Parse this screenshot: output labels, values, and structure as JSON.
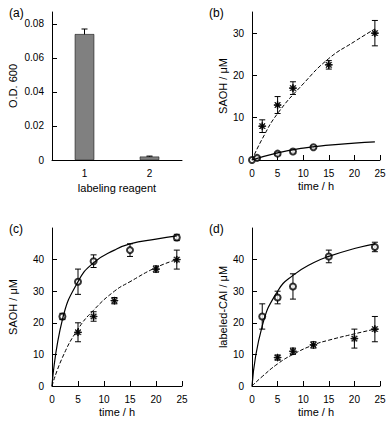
{
  "chart_data": [
    {
      "type": "bar",
      "title": "(a)",
      "xlabel": "labeling reagent",
      "ylabel": "O.D. 600",
      "categories": [
        "1",
        "2"
      ],
      "values": [
        0.074,
        0.002
      ],
      "errors": [
        0.003,
        0.0003
      ],
      "color": "#808080",
      "ylim": [
        0,
        0.087
      ],
      "yticks": [
        0,
        0.02,
        0.04,
        0.06,
        0.08
      ]
    },
    {
      "type": "scatter",
      "title": "(b)",
      "xlabel": "time / h",
      "ylabel": "SAOH / μM",
      "xlim": [
        0,
        25
      ],
      "xticks": [
        0,
        5,
        10,
        15,
        20,
        25
      ],
      "ylim": [
        0,
        35
      ],
      "yticks": [
        0,
        10,
        20,
        30
      ],
      "series": [
        {
          "type": "scatter",
          "marker": "asterisk",
          "color": "#000000",
          "x": [
            2,
            5,
            8,
            15,
            24
          ],
          "values": [
            8,
            13,
            17,
            22.5,
            30
          ],
          "errors": [
            1.5,
            2,
            1.5,
            1,
            3
          ]
        },
        {
          "type": "scatter",
          "marker": "circle",
          "color": "#000000",
          "x": [
            0,
            1,
            5,
            8,
            12
          ],
          "values": [
            0,
            0.5,
            1.5,
            2,
            3
          ],
          "errors": [
            0.3,
            0.3,
            0.3,
            0.3,
            0.3
          ]
        },
        {
          "type": "line",
          "line_style": "dashed",
          "color": "#000000",
          "x": [
            0,
            2,
            5,
            10,
            15,
            20,
            24
          ],
          "values": [
            0,
            5,
            11,
            18,
            24,
            28,
            31
          ]
        },
        {
          "type": "line",
          "line_style": "solid",
          "color": "#000000",
          "x": [
            0,
            5,
            10,
            15,
            20,
            24
          ],
          "values": [
            0,
            1.7,
            2.8,
            3.5,
            4,
            4.3
          ]
        }
      ]
    },
    {
      "type": "scatter",
      "title": "(c)",
      "xlabel": "time / h",
      "ylabel": "SAOH / μM",
      "xlim": [
        0,
        25
      ],
      "xticks": [
        0,
        5,
        10,
        15,
        20,
        25
      ],
      "ylim": [
        0,
        50
      ],
      "yticks": [
        0,
        10,
        20,
        30,
        40
      ],
      "series": [
        {
          "type": "scatter",
          "marker": "circle",
          "color": "#000000",
          "x": [
            2,
            5,
            8,
            15,
            24
          ],
          "values": [
            22,
            33,
            39.5,
            43,
            47
          ],
          "errors": [
            1,
            4,
            2,
            2,
            1
          ]
        },
        {
          "type": "scatter",
          "marker": "asterisk",
          "color": "#000000",
          "x": [
            5,
            8,
            12,
            20,
            24
          ],
          "values": [
            17,
            22,
            27,
            37,
            40
          ],
          "errors": [
            3,
            1.5,
            1,
            1,
            3
          ]
        },
        {
          "type": "line",
          "line_style": "solid",
          "color": "#000000",
          "x": [
            0,
            2,
            5,
            8,
            12,
            15,
            20,
            24
          ],
          "values": [
            0,
            21,
            33,
            39,
            43,
            45,
            46.5,
            47.5
          ]
        },
        {
          "type": "line",
          "line_style": "dashed",
          "color": "#000000",
          "x": [
            0,
            2,
            5,
            8,
            12,
            15,
            20,
            24
          ],
          "values": [
            0,
            9,
            18,
            24,
            30,
            33,
            37.5,
            40
          ]
        }
      ]
    },
    {
      "type": "scatter",
      "title": "(d)",
      "xlabel": "time / h",
      "ylabel": "labeled-CAI / μM",
      "xlim": [
        0,
        25
      ],
      "xticks": [
        0,
        5,
        10,
        15,
        20,
        25
      ],
      "ylim": [
        0,
        50
      ],
      "yticks": [
        0,
        10,
        20,
        30,
        40
      ],
      "series": [
        {
          "type": "scatter",
          "marker": "circle",
          "color": "#000000",
          "x": [
            2,
            5,
            8,
            15,
            24
          ],
          "values": [
            22,
            28,
            31.5,
            41,
            44
          ],
          "errors": [
            4,
            2,
            4,
            2,
            1.5
          ]
        },
        {
          "type": "scatter",
          "marker": "asterisk",
          "color": "#000000",
          "x": [
            5,
            8,
            12,
            20,
            24
          ],
          "values": [
            9,
            11,
            13,
            15,
            18
          ],
          "errors": [
            0.8,
            1,
            1,
            3,
            4
          ]
        },
        {
          "type": "line",
          "line_style": "solid",
          "color": "#000000",
          "x": [
            0,
            2,
            5,
            8,
            12,
            15,
            20,
            24
          ],
          "values": [
            0,
            19,
            30,
            35,
            39,
            41,
            43.5,
            45
          ]
        },
        {
          "type": "line",
          "line_style": "dashed",
          "color": "#000000",
          "x": [
            0,
            2,
            5,
            8,
            12,
            15,
            20,
            24
          ],
          "values": [
            0,
            3,
            7,
            10,
            13,
            14.5,
            16.5,
            18
          ]
        }
      ]
    }
  ]
}
